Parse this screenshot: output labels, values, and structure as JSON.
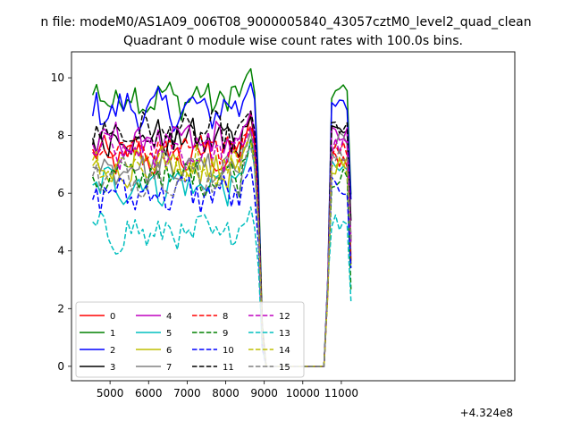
{
  "figure": {
    "suptitle": "n file: modeM0/AS1A09_006T08_9000005840_43057cztM0_level2_quad_clean",
    "title": "Quadrant 0 module wise count rates with 100.0s bins.",
    "offset_label": "+4.324e8"
  },
  "chart_data": {
    "type": "line",
    "x_offset": 432400000,
    "xlim": [
      432404000,
      432415500
    ],
    "ylim": [
      -0.5,
      10.9
    ],
    "xticks": [
      5000,
      6000,
      7000,
      8000,
      9000,
      10000,
      11000
    ],
    "yticks": [
      0,
      2,
      4,
      6,
      8,
      10
    ],
    "x_start": 4550,
    "x_step": 100,
    "x_count": 68,
    "gap": {
      "first_zero_index": 45,
      "last_zero_index": 60,
      "drop_start_index": 42
    },
    "legend": {
      "location": "lower-left",
      "columns": 4
    },
    "series": [
      {
        "name": "0",
        "color": "#ff0000",
        "dash": "solid",
        "mean": 7.25,
        "peak": 8.6,
        "after": 7.2
      },
      {
        "name": "1",
        "color": "#008000",
        "dash": "solid",
        "mean": 9.3,
        "peak": 10.4,
        "after": 9.5
      },
      {
        "name": "2",
        "color": "#0000ff",
        "dash": "solid",
        "mean": 8.9,
        "peak": 9.9,
        "after": 9.0
      },
      {
        "name": "3",
        "color": "#000000",
        "dash": "solid",
        "mean": 7.9,
        "peak": 8.8,
        "after": 8.2
      },
      {
        "name": "4",
        "color": "#bf00bf",
        "dash": "solid",
        "mean": 7.8,
        "peak": 8.7,
        "after": 8.0
      },
      {
        "name": "5",
        "color": "#00bfbf",
        "dash": "solid",
        "mean": 6.3,
        "peak": 7.8,
        "after": 6.8
      },
      {
        "name": "6",
        "color": "#bfbf00",
        "dash": "solid",
        "mean": 6.8,
        "peak": 8.0,
        "after": 7.0
      },
      {
        "name": "7",
        "color": "#808080",
        "dash": "solid",
        "mean": 7.0,
        "peak": 8.2,
        "after": 7.8
      },
      {
        "name": "8",
        "color": "#ff0000",
        "dash": "dashed",
        "mean": 7.5,
        "peak": 8.5,
        "after": 7.5
      },
      {
        "name": "9",
        "color": "#008000",
        "dash": "dashed",
        "mean": 6.6,
        "peak": 7.8,
        "after": 6.5
      },
      {
        "name": "10",
        "color": "#0000ff",
        "dash": "dashed",
        "mean": 6.0,
        "peak": 6.8,
        "after": 6.2
      },
      {
        "name": "11",
        "color": "#000000",
        "dash": "dashed",
        "mean": 8.1,
        "peak": 8.9,
        "after": 8.3
      },
      {
        "name": "12",
        "color": "#bf00bf",
        "dash": "dashed",
        "mean": 7.4,
        "peak": 8.3,
        "after": 7.6
      },
      {
        "name": "13",
        "color": "#00bfbf",
        "dash": "dashed",
        "mean": 4.6,
        "peak": 5.5,
        "after": 5.0
      },
      {
        "name": "14",
        "color": "#bfbf00",
        "dash": "dashed",
        "mean": 7.0,
        "peak": 7.9,
        "after": 6.9
      },
      {
        "name": "15",
        "color": "#808080",
        "dash": "dashed",
        "mean": 6.6,
        "peak": 7.6,
        "after": 7.2
      }
    ]
  }
}
